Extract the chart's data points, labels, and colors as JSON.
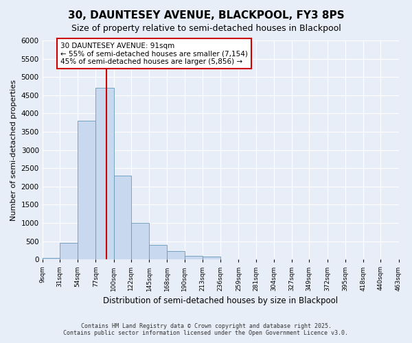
{
  "title": "30, DAUNTESEY AVENUE, BLACKPOOL, FY3 8PS",
  "subtitle": "Size of property relative to semi-detached houses in Blackpool",
  "xlabel": "Distribution of semi-detached houses by size in Blackpool",
  "ylabel": "Number of semi-detached properties",
  "bin_labels": [
    "9sqm",
    "31sqm",
    "54sqm",
    "77sqm",
    "100sqm",
    "122sqm",
    "145sqm",
    "168sqm",
    "190sqm",
    "213sqm",
    "236sqm",
    "259sqm",
    "281sqm",
    "304sqm",
    "327sqm",
    "349sqm",
    "372sqm",
    "395sqm",
    "418sqm",
    "440sqm",
    "463sqm"
  ],
  "bin_edges": [
    9,
    31,
    54,
    77,
    100,
    122,
    145,
    168,
    190,
    213,
    236,
    259,
    281,
    304,
    327,
    349,
    372,
    395,
    418,
    440,
    463
  ],
  "bar_heights": [
    50,
    450,
    3800,
    4700,
    2300,
    1000,
    400,
    230,
    100,
    75,
    0,
    0,
    0,
    0,
    0,
    0,
    0,
    0,
    0,
    0
  ],
  "bar_color": "#c8d8ee",
  "bar_edge_color": "#6699bb",
  "property_value": 91,
  "red_line_color": "#cc0000",
  "annotation_text": "30 DAUNTESEY AVENUE: 91sqm\n← 55% of semi-detached houses are smaller (7,154)\n45% of semi-detached houses are larger (5,856) →",
  "annotation_box_color": "#ffffff",
  "annotation_box_edge": "#cc0000",
  "ylim": [
    0,
    6000
  ],
  "yticks": [
    0,
    500,
    1000,
    1500,
    2000,
    2500,
    3000,
    3500,
    4000,
    4500,
    5000,
    5500,
    6000
  ],
  "background_color": "#e8eef8",
  "grid_color": "#ffffff",
  "title_fontsize": 11,
  "subtitle_fontsize": 9,
  "footer1": "Contains HM Land Registry data © Crown copyright and database right 2025.",
  "footer2": "Contains public sector information licensed under the Open Government Licence v3.0."
}
